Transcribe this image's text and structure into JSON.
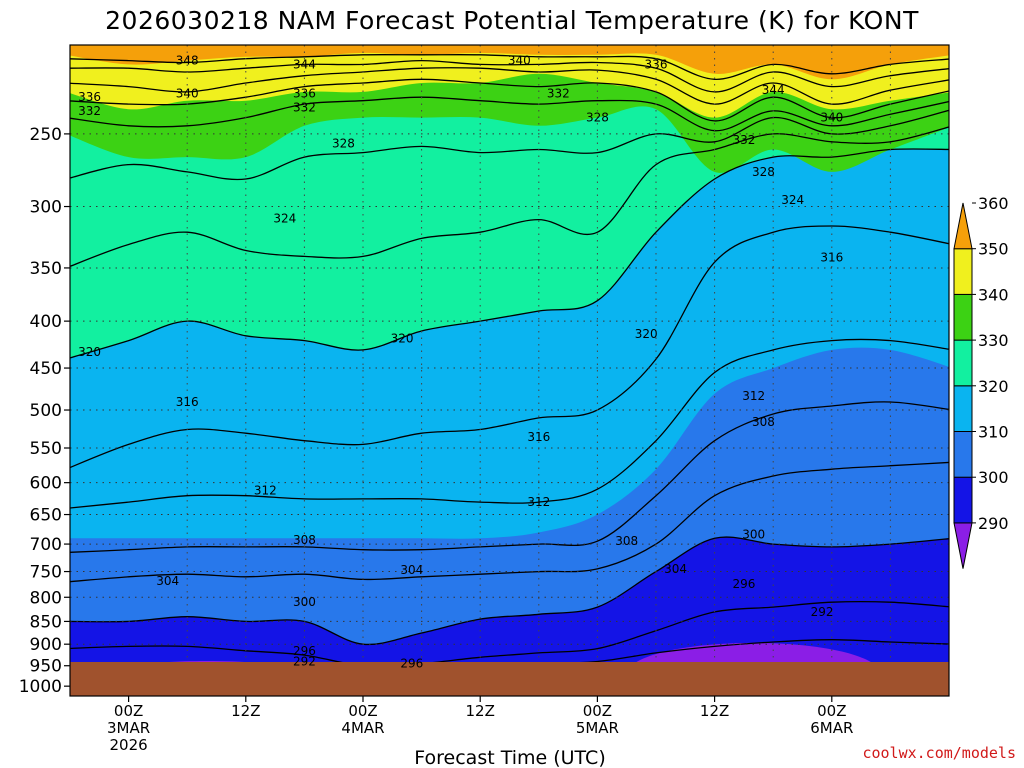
{
  "chart_data": {
    "type": "heatmap",
    "title": "2026030218 NAM Forecast Potential Temperature (K) for KONT",
    "xlabel": "Forecast Time (UTC)",
    "ylabel": "",
    "credit": "coolwx.com/models",
    "y_axis": {
      "units": "hPa",
      "range": [
        1025,
        200
      ],
      "ticks": [
        250,
        300,
        350,
        400,
        450,
        500,
        550,
        600,
        650,
        700,
        750,
        800,
        850,
        900,
        950,
        1000
      ],
      "tick_labels": [
        "250",
        "300",
        "350",
        "400",
        "450",
        "500",
        "550",
        "600",
        "650",
        "700",
        "750",
        "800",
        "850",
        "900",
        "950",
        "1000"
      ],
      "surface_pressure": 965
    },
    "x_axis": {
      "units": "forecast hour",
      "range": [
        -6,
        84
      ],
      "ticks": [
        {
          "hour": 0,
          "lines": [
            "00Z",
            "3MAR",
            "2026"
          ]
        },
        {
          "hour": 12,
          "lines": [
            "12Z"
          ]
        },
        {
          "hour": 24,
          "lines": [
            "00Z",
            "4MAR"
          ]
        },
        {
          "hour": 36,
          "lines": [
            "12Z"
          ]
        },
        {
          "hour": 48,
          "lines": [
            "00Z",
            "5MAR"
          ]
        },
        {
          "hour": 60,
          "lines": [
            "12Z"
          ]
        },
        {
          "hour": 72,
          "lines": [
            "00Z",
            "6MAR"
          ]
        }
      ]
    },
    "colorbar": {
      "levels": [
        290,
        300,
        310,
        320,
        330,
        340,
        350,
        360
      ],
      "labels": [
        "290",
        "300",
        "310",
        "320",
        "330",
        "340",
        "350",
        "360"
      ],
      "colors": [
        "#8b1ee6",
        "#1414e6",
        "#2878eb",
        "#0ab4f0",
        "#12f0a0",
        "#3cd214",
        "#f0f01e",
        "#f5a00a"
      ],
      "extends": "both"
    },
    "boundaries": {
      "hours": [
        -6,
        0,
        6,
        12,
        18,
        24,
        30,
        36,
        42,
        48,
        54,
        60,
        66,
        72,
        78,
        84
      ],
      "K300": [
        850,
        850,
        840,
        850,
        850,
        900,
        875,
        845,
        835,
        820,
        750,
        690,
        700,
        705,
        700,
        690
      ],
      "K310": [
        690,
        690,
        690,
        690,
        690,
        690,
        690,
        690,
        680,
        650,
        580,
        480,
        450,
        430,
        430,
        450
      ],
      "K320": [
        440,
        420,
        400,
        415,
        420,
        430,
        410,
        400,
        390,
        380,
        320,
        280,
        265,
        265,
        260,
        260
      ],
      "K330": [
        250,
        265,
        265,
        265,
        245,
        240,
        240,
        240,
        245,
        240,
        235,
        275,
        260,
        275,
        260,
        245
      ],
      "K340": [
        225,
        235,
        230,
        230,
        225,
        225,
        220,
        220,
        215,
        220,
        225,
        240,
        225,
        235,
        230,
        225
      ],
      "K350": [
        205,
        210,
        208,
        206,
        206,
        204,
        205,
        204,
        205,
        205,
        205,
        215,
        210,
        218,
        210,
        205
      ]
    },
    "low_pockets": [
      {
        "center_hour": 8,
        "top_pressure": 935,
        "level": 290
      },
      {
        "center_hour": 64,
        "top_pressure": 880,
        "level": 290
      }
    ],
    "contours": {
      "hours": [
        -6,
        0,
        6,
        12,
        18,
        24,
        30,
        36,
        42,
        48,
        54,
        60,
        66,
        72,
        78,
        84
      ],
      "lines": [
        {
          "value": 292,
          "p": [
            945,
            945,
            948,
            945,
            950,
            955,
            950,
            945,
            945,
            940,
            920,
            905,
            895,
            890,
            895,
            900
          ]
        },
        {
          "value": 296,
          "p": [
            910,
            905,
            905,
            915,
            925,
            950,
            945,
            930,
            920,
            910,
            870,
            830,
            820,
            810,
            810,
            820
          ]
        },
        {
          "value": 300,
          "p": [
            850,
            850,
            840,
            850,
            850,
            900,
            875,
            845,
            835,
            820,
            750,
            690,
            700,
            705,
            700,
            690
          ]
        },
        {
          "value": 304,
          "p": [
            770,
            760,
            755,
            760,
            755,
            765,
            760,
            755,
            750,
            745,
            700,
            620,
            590,
            580,
            575,
            570
          ]
        },
        {
          "value": 308,
          "p": [
            715,
            710,
            705,
            705,
            705,
            710,
            710,
            705,
            700,
            695,
            620,
            540,
            505,
            495,
            490,
            500
          ]
        },
        {
          "value": 312,
          "p": [
            640,
            630,
            620,
            620,
            625,
            625,
            625,
            630,
            630,
            610,
            540,
            455,
            430,
            420,
            420,
            430
          ]
        },
        {
          "value": 316,
          "p": [
            580,
            545,
            525,
            530,
            540,
            545,
            530,
            525,
            510,
            500,
            440,
            345,
            320,
            315,
            320,
            330
          ]
        },
        {
          "value": 320,
          "p": [
            440,
            420,
            400,
            415,
            420,
            430,
            410,
            400,
            390,
            380,
            320,
            280,
            265,
            265,
            260,
            260
          ]
        },
        {
          "value": 324,
          "p": [
            350,
            330,
            320,
            335,
            340,
            340,
            325,
            320,
            310,
            320,
            270,
            260,
            250,
            255,
            255,
            245
          ]
        },
        {
          "value": 328,
          "p": [
            280,
            270,
            275,
            280,
            265,
            262,
            258,
            262,
            260,
            262,
            250,
            255,
            240,
            250,
            245,
            235
          ]
        },
        {
          "value": 332,
          "p": [
            240,
            245,
            245,
            240,
            232,
            230,
            228,
            230,
            232,
            230,
            232,
            248,
            236,
            245,
            238,
            230
          ]
        },
        {
          "value": 336,
          "p": [
            230,
            232,
            232,
            228,
            222,
            220,
            218,
            220,
            222,
            220,
            225,
            242,
            228,
            240,
            232,
            224
          ]
        },
        {
          "value": 340,
          "p": [
            220,
            222,
            225,
            220,
            216,
            214,
            212,
            212,
            214,
            213,
            218,
            232,
            220,
            232,
            224,
            218
          ]
        },
        {
          "value": 344,
          "p": [
            212,
            212,
            214,
            212,
            210,
            210,
            208,
            210,
            210,
            209,
            212,
            225,
            214,
            222,
            216,
            212
          ]
        },
        {
          "value": 348,
          "p": [
            207,
            208,
            209,
            207,
            206,
            205,
            205,
            205,
            206,
            206,
            207,
            218,
            210,
            215,
            210,
            207
          ]
        }
      ],
      "labels": [
        {
          "text": "348",
          "hour": 6,
          "pressure": 208
        },
        {
          "text": "344",
          "hour": 18,
          "pressure": 210
        },
        {
          "text": "340",
          "hour": 40,
          "pressure": 208
        },
        {
          "text": "336",
          "hour": 54,
          "pressure": 210
        },
        {
          "text": "344",
          "hour": 66,
          "pressure": 224
        },
        {
          "text": "336",
          "hour": -4,
          "pressure": 228
        },
        {
          "text": "332",
          "hour": -4,
          "pressure": 236
        },
        {
          "text": "340",
          "hour": 6,
          "pressure": 226
        },
        {
          "text": "336",
          "hour": 18,
          "pressure": 226
        },
        {
          "text": "332",
          "hour": 18,
          "pressure": 234
        },
        {
          "text": "332",
          "hour": 44,
          "pressure": 226
        },
        {
          "text": "328",
          "hour": 48,
          "pressure": 240
        },
        {
          "text": "340",
          "hour": 72,
          "pressure": 240
        },
        {
          "text": "332",
          "hour": 63,
          "pressure": 254
        },
        {
          "text": "328",
          "hour": 22,
          "pressure": 256
        },
        {
          "text": "328",
          "hour": 65,
          "pressure": 275
        },
        {
          "text": "324",
          "hour": 68,
          "pressure": 295
        },
        {
          "text": "324",
          "hour": 16,
          "pressure": 309
        },
        {
          "text": "316",
          "hour": 72,
          "pressure": 341
        },
        {
          "text": "320",
          "hour": -4,
          "pressure": 432
        },
        {
          "text": "320",
          "hour": 28,
          "pressure": 418
        },
        {
          "text": "320",
          "hour": 53,
          "pressure": 413
        },
        {
          "text": "312",
          "hour": 64,
          "pressure": 483
        },
        {
          "text": "316",
          "hour": 6,
          "pressure": 490
        },
        {
          "text": "308",
          "hour": 65,
          "pressure": 515
        },
        {
          "text": "316",
          "hour": 42,
          "pressure": 535
        },
        {
          "text": "312",
          "hour": 14,
          "pressure": 612
        },
        {
          "text": "312",
          "hour": 42,
          "pressure": 630
        },
        {
          "text": "308",
          "hour": 18,
          "pressure": 693
        },
        {
          "text": "308",
          "hour": 51,
          "pressure": 695
        },
        {
          "text": "300",
          "hour": 64,
          "pressure": 683
        },
        {
          "text": "304",
          "hour": 4,
          "pressure": 768
        },
        {
          "text": "304",
          "hour": 29,
          "pressure": 747
        },
        {
          "text": "304",
          "hour": 56,
          "pressure": 745
        },
        {
          "text": "296",
          "hour": 63,
          "pressure": 774
        },
        {
          "text": "300",
          "hour": 18,
          "pressure": 810
        },
        {
          "text": "292",
          "hour": 71,
          "pressure": 830
        },
        {
          "text": "296",
          "hour": 18,
          "pressure": 915
        },
        {
          "text": "292",
          "hour": 18,
          "pressure": 940
        },
        {
          "text": "296",
          "hour": 29,
          "pressure": 945
        }
      ]
    }
  }
}
